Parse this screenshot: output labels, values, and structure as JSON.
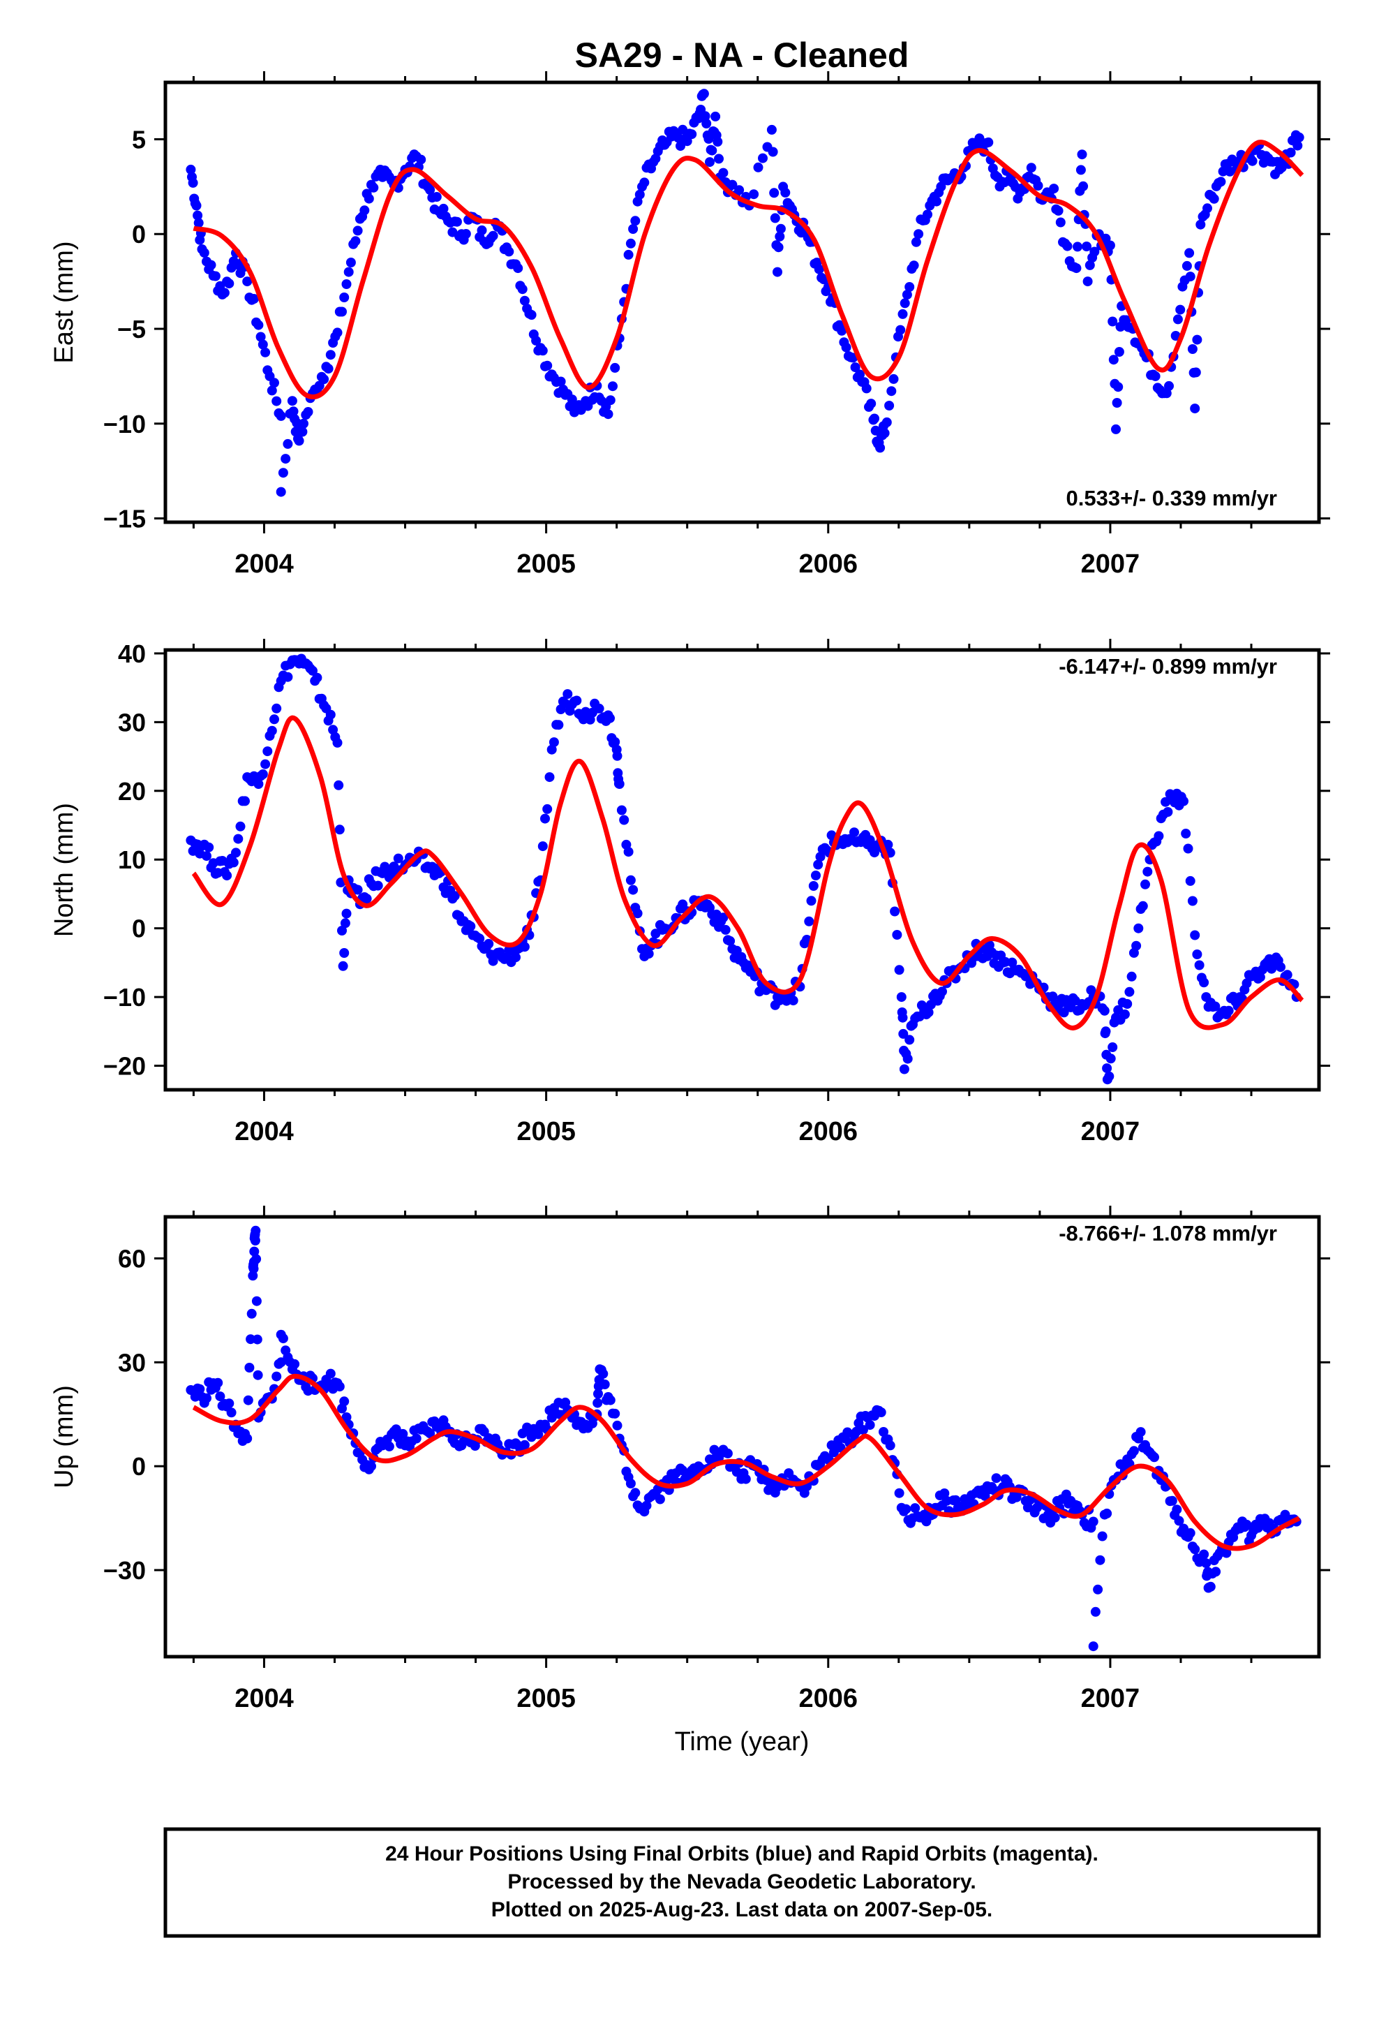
{
  "title": "SA29  - NA - Cleaned",
  "colors": {
    "final_orbits": "#0000ff",
    "rapid_orbits": "#ff00ff",
    "model": "#ff0000",
    "frame": "#000000"
  },
  "footer": {
    "line1": "24 Hour Positions Using Final Orbits (blue) and Rapid Orbits (magenta).",
    "line2": "Processed by the Nevada Geodetic Laboratory.",
    "line3": "Plotted on 2025-Aug-23. Last data on 2007-Sep-05."
  },
  "chart_data": [
    {
      "type": "scatter",
      "component": "east",
      "ylabel": "East (mm)",
      "xlabel": "",
      "rate_label": "0.533+/- 0.339 mm/yr",
      "rate_position": "bottom-right",
      "xlim": [
        2003.65,
        2007.74
      ],
      "ylim": [
        -15.2,
        8
      ],
      "x_ticks": [
        2004,
        2005,
        2006,
        2007
      ],
      "y_ticks": [
        5,
        0,
        -5,
        -10,
        -15
      ],
      "y_tick_labels": [
        "5",
        "0",
        "−5",
        "−10",
        "−15"
      ],
      "model_curve": {
        "x": [
          2003.75,
          2003.85,
          2003.95,
          2004.05,
          2004.15,
          2004.25,
          2004.35,
          2004.45,
          2004.53,
          2004.65,
          2004.75,
          2004.85,
          2004.95,
          2005.05,
          2005.15,
          2005.25,
          2005.35,
          2005.45,
          2005.53,
          2005.65,
          2005.75,
          2005.85,
          2005.95,
          2006.05,
          2006.15,
          2006.25,
          2006.35,
          2006.45,
          2006.53,
          2006.65,
          2006.75,
          2006.85,
          2006.95,
          2007.05,
          2007.17,
          2007.25,
          2007.35,
          2007.45,
          2007.52,
          2007.6,
          2007.68
        ],
        "y": [
          0.3,
          -0.1,
          -2,
          -6,
          -8.5,
          -7.5,
          -2.5,
          2.2,
          3.4,
          2,
          0.8,
          0.4,
          -1.8,
          -5.5,
          -8.1,
          -5.5,
          0,
          3.4,
          3.9,
          2.2,
          1.5,
          1.2,
          -0.3,
          -4.3,
          -7.5,
          -6.5,
          -1.5,
          2.7,
          4.4,
          3.3,
          2,
          1.5,
          0,
          -3.5,
          -7.1,
          -5.5,
          -0.6,
          3.2,
          4.8,
          4.3,
          3.1
        ]
      },
      "observations": {
        "x": [
          2003.74,
          2003.76,
          2003.78,
          2003.82,
          2003.86,
          2003.9,
          2003.94,
          2003.98,
          2004.02,
          2004.06,
          2004.1,
          2004.14,
          2004.18,
          2004.22,
          2004.26,
          2004.3,
          2004.34,
          2004.38,
          2004.42,
          2004.46,
          2004.5,
          2004.54,
          2004.58,
          2004.62,
          2004.66,
          2004.7,
          2004.74,
          2004.78,
          2004.82,
          2004.86,
          2004.9,
          2004.94,
          2004.98,
          2005.02,
          2005.06,
          2005.1,
          2005.14,
          2005.18,
          2005.22,
          2005.26,
          2005.3,
          2005.34,
          2005.38,
          2005.42,
          2005.46,
          2005.5,
          2005.54,
          2005.58,
          2005.62,
          2005.66,
          2005.72,
          2005.8,
          2005.84,
          2005.88,
          2005.92,
          2005.96,
          2006.0,
          2006.04,
          2006.08,
          2006.12,
          2006.16,
          2006.2,
          2006.24,
          2006.28,
          2006.32,
          2006.36,
          2006.4,
          2006.44,
          2006.48,
          2006.52,
          2006.56,
          2006.6,
          2006.64,
          2006.68,
          2006.72,
          2006.76,
          2006.8,
          2006.84,
          2006.88,
          2006.92,
          2006.96,
          2007.0,
          2007.04,
          2007.08,
          2007.12,
          2007.16,
          2007.2,
          2007.24,
          2007.28,
          2007.32,
          2007.36,
          2007.4,
          2007.44,
          2007.48,
          2007.52,
          2007.56,
          2007.6,
          2007.64,
          2007.67,
          2004.06,
          2004.12,
          2005.56,
          2005.6,
          2006.18,
          2007.02,
          2006.9,
          2005.82,
          2007.3
        ],
        "y": [
          3.4,
          1.5,
          -0.8,
          -2.2,
          -3.1,
          -1.0,
          -2.5,
          -4.8,
          -7.5,
          -9.6,
          -8.8,
          -10.0,
          -8.2,
          -7.0,
          -5.2,
          -2.0,
          0.8,
          2.6,
          3.0,
          2.6,
          3.4,
          4.1,
          2.5,
          1.2,
          0.6,
          0.0,
          0.9,
          -0.4,
          0.6,
          -0.7,
          -1.8,
          -4.2,
          -6.0,
          -7.4,
          -8.2,
          -9.4,
          -8.8,
          -8.0,
          -9.5,
          -5.5,
          -0.5,
          2.5,
          3.8,
          4.7,
          5.2,
          4.9,
          6.1,
          3.8,
          2.8,
          2.6,
          1.5,
          5.5,
          2.5,
          1.0,
          0.2,
          -1.5,
          -2.8,
          -4.8,
          -6.5,
          -7.8,
          -9.8,
          -10.5,
          -6.5,
          -3.2,
          0.0,
          1.5,
          2.5,
          3.0,
          3.5,
          4.6,
          4.8,
          3.0,
          2.8,
          2.2,
          3.5,
          1.8,
          2.4,
          -0.5,
          -1.8,
          -2.5,
          0.0,
          -0.6,
          -3.8,
          -5.0,
          -6.3,
          -7.5,
          -8.4,
          -4.5,
          -1.0,
          0.5,
          2.0,
          3.3,
          3.8,
          4.0,
          4.6,
          4.0,
          3.4,
          4.3,
          5.1,
          -13.6,
          -10.8,
          7.4,
          6.2,
          -11.0,
          -10.3,
          4.2,
          -2.0,
          -9.2
        ]
      }
    },
    {
      "type": "scatter",
      "component": "north",
      "ylabel": "North (mm)",
      "xlabel": "",
      "rate_label": "-6.147+/- 0.899 mm/yr",
      "rate_position": "top-right",
      "xlim": [
        2003.65,
        2007.74
      ],
      "ylim": [
        -23.5,
        40.5
      ],
      "x_ticks": [
        2004,
        2005,
        2006,
        2007
      ],
      "y_ticks": [
        40,
        30,
        20,
        10,
        0,
        -10,
        -20
      ],
      "y_tick_labels": [
        "40",
        "30",
        "20",
        "10",
        "0",
        "−10",
        "−20"
      ],
      "model_curve": {
        "x": [
          2003.75,
          2003.85,
          2003.95,
          2004.05,
          2004.11,
          2004.2,
          2004.28,
          2004.36,
          2004.45,
          2004.55,
          2004.6,
          2004.7,
          2004.8,
          2004.9,
          2004.98,
          2005.05,
          2005.12,
          2005.2,
          2005.28,
          2005.38,
          2005.48,
          2005.58,
          2005.68,
          2005.78,
          2005.9,
          2006.0,
          2006.06,
          2006.12,
          2006.2,
          2006.3,
          2006.4,
          2006.5,
          2006.58,
          2006.68,
          2006.78,
          2006.87,
          2006.95,
          2007.03,
          2007.1,
          2007.18,
          2007.28,
          2007.4,
          2007.5,
          2007.6,
          2007.68
        ],
        "y": [
          8,
          3.5,
          12,
          26,
          30.5,
          22,
          8,
          3.3,
          6.5,
          10.8,
          10.5,
          5,
          -1,
          -2,
          5,
          18,
          24.3,
          16,
          4,
          -2.5,
          1.5,
          4.6,
          0,
          -8,
          -7.5,
          9,
          16,
          18,
          11,
          -2,
          -8,
          -4,
          -1.5,
          -4,
          -11,
          -14.5,
          -10,
          3,
          12,
          7,
          -12,
          -14,
          -10,
          -7.5,
          -10.5
        ]
      },
      "observations": {
        "x": [
          2003.74,
          2003.78,
          2003.82,
          2003.86,
          2003.9,
          2003.94,
          2003.98,
          2004.02,
          2004.06,
          2004.1,
          2004.14,
          2004.18,
          2004.22,
          2004.26,
          2004.3,
          2004.34,
          2004.38,
          2004.42,
          2004.46,
          2004.5,
          2004.54,
          2004.58,
          2004.62,
          2004.66,
          2004.7,
          2004.74,
          2004.78,
          2004.82,
          2004.86,
          2004.9,
          2004.94,
          2004.98,
          2005.02,
          2005.06,
          2005.1,
          2005.14,
          2005.18,
          2005.22,
          2005.26,
          2005.3,
          2005.34,
          2005.38,
          2005.42,
          2005.46,
          2005.5,
          2005.54,
          2005.58,
          2005.62,
          2005.66,
          2005.7,
          2005.74,
          2005.78,
          2005.82,
          2005.86,
          2005.9,
          2005.94,
          2005.98,
          2006.02,
          2006.06,
          2006.1,
          2006.14,
          2006.18,
          2006.22,
          2006.26,
          2006.3,
          2006.34,
          2006.38,
          2006.42,
          2006.46,
          2006.5,
          2006.54,
          2006.58,
          2006.62,
          2006.66,
          2006.7,
          2006.74,
          2006.78,
          2006.82,
          2006.86,
          2006.9,
          2006.94,
          2006.98,
          2007.02,
          2007.06,
          2007.1,
          2007.14,
          2007.18,
          2007.22,
          2007.26,
          2007.3,
          2007.34,
          2007.38,
          2007.42,
          2007.46,
          2007.5,
          2007.54,
          2007.58,
          2007.62,
          2007.66,
          2004.28,
          2006.27,
          2006.99,
          2005.25
        ],
        "y": [
          12.8,
          12,
          9.5,
          8.2,
          11,
          22,
          21,
          28,
          36,
          39,
          38.5,
          36,
          32,
          27,
          7,
          3.5,
          6.5,
          8,
          9,
          9.2,
          10,
          9,
          8,
          5.5,
          1,
          -1,
          -3,
          -3.8,
          -4.2,
          -3,
          -1,
          7,
          26,
          33,
          33,
          31.5,
          32,
          31,
          21,
          7,
          -3,
          -2,
          0,
          1.5,
          2.5,
          4,
          3,
          1,
          -3,
          -5,
          -7,
          -9,
          -10,
          -9.5,
          -8.5,
          4,
          11.5,
          12.5,
          13,
          12.5,
          12.2,
          12,
          11,
          -10,
          -14,
          -12,
          -9.5,
          -8,
          -6,
          -4,
          -3,
          -3.5,
          -5,
          -6,
          -7,
          -8,
          -10,
          -11,
          -11.5,
          -11,
          -10,
          -12,
          -13,
          -11,
          0,
          10,
          16,
          19,
          18.5,
          -1,
          -10,
          -13,
          -12,
          -10,
          -7,
          -6,
          -5,
          -7,
          -10,
          -5.5,
          -20.5,
          -22,
          26
        ],
        "rapid_x": [],
        "rapid_y": []
      }
    },
    {
      "type": "scatter",
      "component": "up",
      "ylabel": "Up (mm)",
      "xlabel": "Time (year)",
      "rate_label": "-8.766+/- 1.078 mm/yr",
      "rate_position": "top-right",
      "xlim": [
        2003.65,
        2007.74
      ],
      "ylim": [
        -55,
        72
      ],
      "x_ticks": [
        2004,
        2005,
        2006,
        2007
      ],
      "y_ticks": [
        60,
        30,
        0,
        -30
      ],
      "y_tick_labels": [
        "60",
        "30",
        "0",
        "−30"
      ],
      "model_curve": {
        "x": [
          2003.75,
          2003.85,
          2003.95,
          2004.05,
          2004.11,
          2004.2,
          2004.3,
          2004.4,
          2004.5,
          2004.6,
          2004.66,
          2004.75,
          2004.85,
          2004.95,
          2005.05,
          2005.12,
          2005.2,
          2005.3,
          2005.4,
          2005.5,
          2005.6,
          2005.7,
          2005.8,
          2005.9,
          2006.0,
          2006.1,
          2006.15,
          2006.25,
          2006.35,
          2006.45,
          2006.55,
          2006.63,
          2006.72,
          2006.82,
          2006.9,
          2007.0,
          2007.1,
          2007.2,
          2007.3,
          2007.4,
          2007.5,
          2007.6,
          2007.67
        ],
        "y": [
          17,
          13,
          13.5,
          22,
          26,
          22,
          10,
          2,
          3,
          8,
          10,
          8,
          4,
          5,
          13,
          17,
          13,
          2,
          -5,
          -5,
          0.5,
          1,
          -3,
          -5,
          0,
          7,
          8,
          -2,
          -12,
          -14,
          -11,
          -7,
          -8,
          -13,
          -14,
          -6,
          0,
          -4,
          -16,
          -23,
          -23,
          -18,
          -15
        ]
      },
      "observations": {
        "x": [
          2003.74,
          2003.78,
          2003.82,
          2003.86,
          2003.9,
          2003.94,
          2003.98,
          2004.02,
          2004.06,
          2004.1,
          2004.14,
          2004.18,
          2004.22,
          2004.26,
          2004.3,
          2004.34,
          2004.38,
          2004.42,
          2004.46,
          2004.5,
          2004.54,
          2004.58,
          2004.62,
          2004.66,
          2004.7,
          2004.74,
          2004.78,
          2004.82,
          2004.86,
          2004.9,
          2004.94,
          2004.98,
          2005.02,
          2005.06,
          2005.1,
          2005.14,
          2005.18,
          2005.22,
          2005.26,
          2005.3,
          2005.34,
          2005.38,
          2005.42,
          2005.46,
          2005.5,
          2005.54,
          2005.58,
          2005.62,
          2005.66,
          2005.7,
          2005.74,
          2005.78,
          2005.82,
          2005.86,
          2005.9,
          2005.94,
          2005.98,
          2006.02,
          2006.06,
          2006.1,
          2006.14,
          2006.18,
          2006.22,
          2006.26,
          2006.3,
          2006.34,
          2006.38,
          2006.42,
          2006.46,
          2006.5,
          2006.54,
          2006.58,
          2006.62,
          2006.66,
          2006.7,
          2006.74,
          2006.78,
          2006.82,
          2006.86,
          2006.9,
          2006.94,
          2006.98,
          2007.02,
          2007.06,
          2007.1,
          2007.14,
          2007.18,
          2007.22,
          2007.26,
          2007.3,
          2007.34,
          2007.38,
          2007.42,
          2007.46,
          2007.5,
          2007.54,
          2007.58,
          2007.62,
          2007.66,
          2003.96,
          2003.965,
          2003.97,
          2004.06,
          2005.19,
          2006.94,
          2007.35
        ],
        "y": [
          22,
          20,
          24,
          18,
          12,
          8,
          14,
          20,
          30,
          28,
          26,
          22,
          25,
          24,
          12,
          4,
          0,
          6,
          10,
          6,
          8,
          10,
          12,
          10,
          6,
          8,
          10,
          8,
          4,
          6,
          10,
          12,
          14,
          18,
          15,
          12,
          15,
          20,
          8,
          -5,
          -12,
          -8,
          -6,
          -2,
          -4,
          0,
          2,
          4,
          0,
          -2,
          0,
          -4,
          -6,
          -2,
          -6,
          -4,
          2,
          4,
          8,
          10,
          14,
          16,
          6,
          -12,
          -15,
          -14,
          -12,
          -10,
          -12,
          -10,
          -8,
          -6,
          -6,
          -8,
          -10,
          -12,
          -14,
          -12,
          -10,
          -14,
          -16,
          -14,
          -4,
          2,
          8,
          4,
          -4,
          -10,
          -18,
          -24,
          -28,
          -26,
          -22,
          -18,
          -20,
          -16,
          -18,
          -14,
          -16,
          55,
          62,
          68,
          38,
          28,
          -52,
          -35
        ]
      }
    }
  ]
}
